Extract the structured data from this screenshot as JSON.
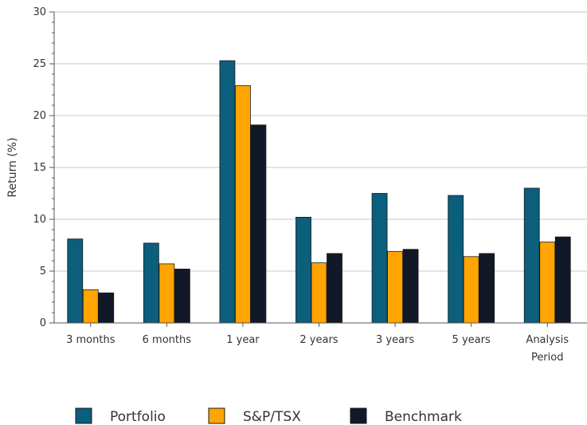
{
  "chart_data": {
    "type": "bar",
    "categories": [
      "3 months",
      "6 months",
      "1 year",
      "2 years",
      "3 years",
      "5 years",
      "Analysis Period"
    ],
    "category_lines": [
      [
        "3 months"
      ],
      [
        "6 months"
      ],
      [
        "1 year"
      ],
      [
        "2 years"
      ],
      [
        "3 years"
      ],
      [
        "5 years"
      ],
      [
        "Analysis",
        "Period"
      ]
    ],
    "series": [
      {
        "name": "Portfolio",
        "color": "#0b5e7c",
        "values": [
          8.1,
          7.7,
          25.3,
          10.2,
          12.5,
          12.3,
          13.0
        ]
      },
      {
        "name": "S&P/TSX",
        "color": "#ffa400",
        "values": [
          3.2,
          5.7,
          22.9,
          5.8,
          6.9,
          6.4,
          7.8
        ]
      },
      {
        "name": "Benchmark",
        "color": "#111827",
        "values": [
          2.9,
          5.2,
          19.1,
          6.7,
          7.1,
          6.7,
          8.3
        ]
      }
    ],
    "ylabel": "Return (%)",
    "xlabel": "",
    "ylim": [
      0,
      30
    ],
    "yticks": [
      0,
      5,
      10,
      15,
      20,
      25,
      30
    ],
    "grid": true,
    "legend_position": "bottom"
  }
}
